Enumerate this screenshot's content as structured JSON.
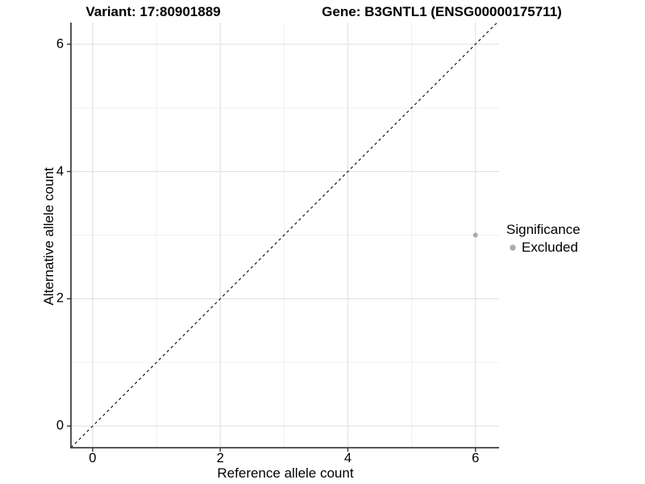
{
  "chart_data": {
    "type": "scatter",
    "title_left": "Variant: 17:80901889",
    "title_right": "Gene: B3GNTL1 (ENSG00000175711)",
    "xlabel": "Reference allele count",
    "ylabel": "Alternative allele count",
    "xlim": [
      -0.34,
      6.37
    ],
    "ylim": [
      -0.34,
      6.34
    ],
    "x_ticks": [
      0,
      2,
      4,
      6
    ],
    "y_ticks": [
      0,
      2,
      4,
      6
    ],
    "x_minor": [
      1,
      3,
      5
    ],
    "y_minor": [
      1,
      3,
      5
    ],
    "grid": true,
    "points": [
      {
        "x": 6,
        "y": 3,
        "series": "Excluded"
      }
    ],
    "abline": {
      "slope": 1,
      "intercept": 0,
      "style": "dashed"
    },
    "legend": {
      "position": "right",
      "title": "Significance",
      "entries": [
        {
          "label": "Excluded",
          "color": "#ababab"
        }
      ]
    },
    "colors": {
      "background": "#ffffff",
      "grid_major": "#e2e2e2",
      "grid_minor": "#f0f0f0",
      "axis_line": "#404040",
      "tick": "#333333",
      "text": "#000000",
      "abline": "#1a1a1a",
      "point": "#ababab"
    }
  }
}
